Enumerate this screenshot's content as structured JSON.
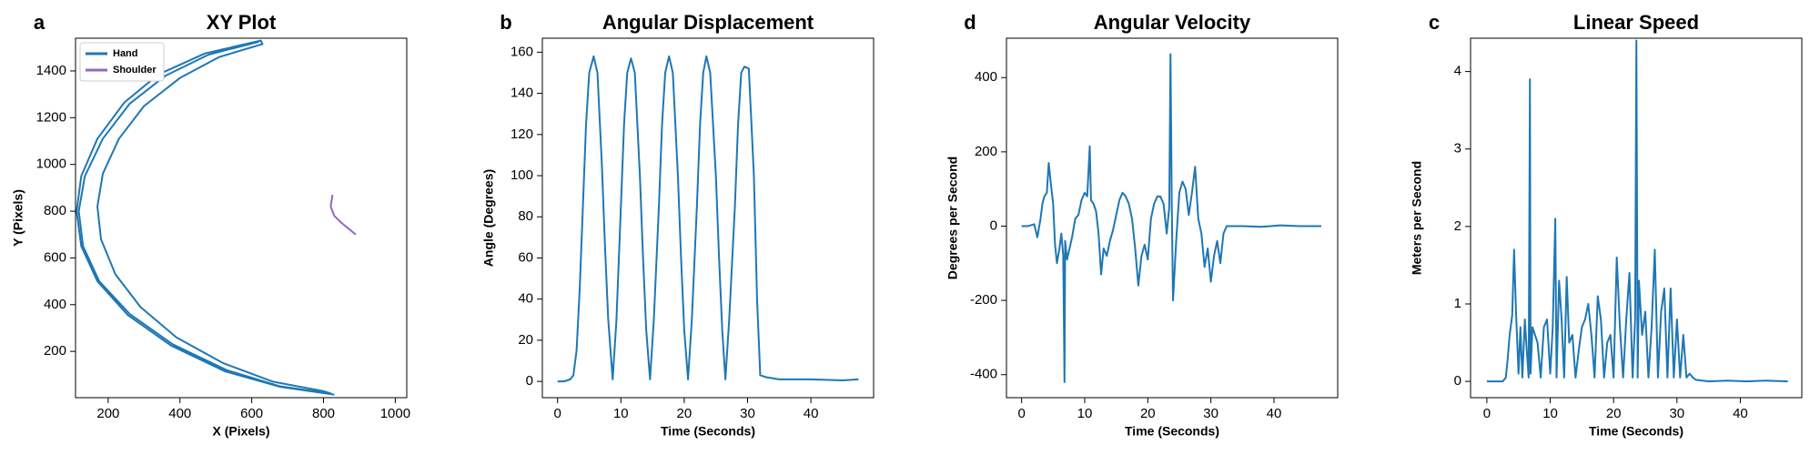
{
  "chart_data": [
    {
      "type": "line",
      "label": "a",
      "title": "XY Plot",
      "x_label": "X (Pixels)",
      "y_label": "Y (Pixels)",
      "xlim": [
        109,
        1032
      ],
      "ylim": [
        2,
        1540
      ],
      "xticks": [
        200,
        400,
        600,
        800,
        1000
      ],
      "yticks": [
        200,
        400,
        600,
        800,
        1000,
        1200,
        1400
      ],
      "legend": "upper left",
      "series": [
        {
          "name": "Hand",
          "color": "#1f77b4",
          "x": [
            620,
            480,
            360,
            260,
            185,
            135,
            118,
            130,
            175,
            260,
            380,
            530,
            680,
            820,
            800,
            660,
            520,
            390,
            290,
            220,
            180,
            170,
            185,
            230,
            300,
            400,
            510,
            630,
            625,
            470,
            340,
            245,
            170,
            125,
            112,
            125,
            170,
            255,
            375,
            525,
            680,
            830
          ],
          "values": [
            1525,
            1470,
            1380,
            1260,
            1110,
            950,
            800,
            650,
            500,
            360,
            230,
            120,
            50,
            20,
            30,
            70,
            150,
            260,
            390,
            530,
            680,
            820,
            960,
            1110,
            1250,
            1370,
            1460,
            1515,
            1530,
            1475,
            1385,
            1265,
            1110,
            950,
            800,
            650,
            500,
            355,
            225,
            115,
            48,
            15
          ]
        },
        {
          "name": "Shoulder",
          "color": "#9467bd",
          "x": [
            825,
            820,
            830,
            850,
            870,
            890
          ],
          "values": [
            870,
            820,
            780,
            750,
            725,
            700
          ]
        }
      ]
    },
    {
      "type": "line",
      "label": "b",
      "title": "Angular Displacement",
      "x_label": "Time (Seconds)",
      "y_label": "Angle (Degrees)",
      "xlim": [
        -2.4,
        49.9
      ],
      "ylim": [
        -7.9,
        166.8
      ],
      "xticks": [
        0,
        10,
        20,
        30,
        40
      ],
      "yticks": [
        0,
        20,
        40,
        60,
        80,
        100,
        120,
        140,
        160
      ],
      "series": [
        {
          "color": "#1f77b4",
          "x": [
            0,
            1,
            2,
            2.5,
            3,
            3.5,
            4,
            4.5,
            5,
            5.7,
            6.3,
            7,
            7.5,
            8,
            8.7,
            9.3,
            10,
            10.5,
            11,
            11.6,
            12.2,
            13,
            13.5,
            14,
            14.6,
            15.2,
            16,
            16.5,
            17,
            17.6,
            18.2,
            19,
            19.5,
            20,
            20.6,
            21.2,
            22,
            22.5,
            23,
            23.5,
            24.1,
            25,
            25.5,
            26,
            26.5,
            27.1,
            28,
            28.5,
            29,
            29.5,
            30.2,
            31,
            31.5,
            32,
            33,
            35,
            40,
            45,
            47.5
          ],
          "values": [
            0,
            0,
            1,
            3,
            15,
            45,
            85,
            125,
            150,
            158,
            150,
            105,
            65,
            30,
            1,
            30,
            85,
            125,
            150,
            157,
            150,
            100,
            60,
            25,
            1,
            30,
            85,
            125,
            150,
            158,
            150,
            100,
            60,
            25,
            1,
            30,
            85,
            125,
            150,
            158,
            150,
            100,
            60,
            25,
            1,
            30,
            85,
            125,
            150,
            153,
            152,
            100,
            40,
            3,
            2,
            1,
            1,
            0.5,
            1
          ]
        }
      ]
    },
    {
      "type": "line",
      "label": "d",
      "title": "Angular Velocity",
      "x_label": "Time (Seconds)",
      "y_label": "Degrees per Second",
      "xlim": [
        -2.4,
        50.1
      ],
      "ylim": [
        -462,
        506
      ],
      "xticks": [
        0,
        10,
        20,
        30,
        40
      ],
      "yticks": [
        -400,
        -200,
        0,
        200,
        400
      ],
      "series": [
        {
          "color": "#1f77b4",
          "x": [
            0,
            1,
            2,
            2.5,
            3,
            3.3,
            3.6,
            4,
            4.3,
            4.6,
            5,
            5.3,
            5.6,
            6,
            6.3,
            6.6,
            6.8,
            6.9,
            7.2,
            7.6,
            8,
            8.5,
            9,
            9.5,
            10,
            10.4,
            10.8,
            11,
            11.4,
            11.8,
            12.2,
            12.6,
            13,
            13.5,
            14,
            14.5,
            15,
            15.5,
            16,
            16.5,
            17,
            17.5,
            18,
            18.5,
            19,
            19.5,
            20,
            20.5,
            21,
            21.5,
            22,
            22.5,
            23,
            23.4,
            23.6,
            23.8,
            24,
            24.5,
            25,
            25.5,
            26,
            26.5,
            27,
            27.5,
            28,
            28.5,
            29,
            29.5,
            30,
            30.5,
            31,
            31.5,
            32,
            32.5,
            33,
            35,
            38,
            41,
            44,
            47.5
          ],
          "values": [
            0,
            0,
            5,
            -30,
            20,
            60,
            80,
            90,
            170,
            120,
            60,
            -50,
            -100,
            -60,
            -20,
            -80,
            -420,
            -40,
            -90,
            -60,
            -30,
            20,
            30,
            70,
            90,
            80,
            215,
            70,
            60,
            40,
            -20,
            -130,
            -60,
            -80,
            -40,
            -10,
            30,
            70,
            90,
            80,
            60,
            20,
            -60,
            -160,
            -80,
            -50,
            -90,
            20,
            60,
            80,
            80,
            60,
            -20,
            50,
            463,
            60,
            -200,
            -40,
            90,
            120,
            100,
            30,
            90,
            160,
            20,
            -20,
            -110,
            -60,
            -150,
            -80,
            -40,
            -100,
            -20,
            0,
            0,
            0,
            -2,
            2,
            0,
            0
          ]
        }
      ]
    },
    {
      "type": "line",
      "label": "c",
      "title": "Linear Speed",
      "x_label": "Time (Seconds)",
      "y_label": "Meters per Second",
      "xlim": [
        -2.57,
        49.7
      ],
      "ylim": [
        -0.21,
        4.43
      ],
      "xticks": [
        0,
        10,
        20,
        30,
        40
      ],
      "yticks": [
        0,
        1,
        2,
        3,
        4
      ],
      "series": [
        {
          "color": "#1f77b4",
          "x": [
            0,
            1,
            2,
            2.5,
            3,
            3.3,
            3.6,
            4,
            4.3,
            4.6,
            5,
            5.3,
            5.6,
            6,
            6.3,
            6.6,
            6.8,
            6.9,
            7.2,
            7.6,
            8,
            8.5,
            9,
            9.5,
            10,
            10.4,
            10.8,
            11,
            11.4,
            11.8,
            12.2,
            12.6,
            13,
            13.5,
            14,
            14.5,
            15,
            15.5,
            16,
            16.5,
            17,
            17.5,
            18,
            18.5,
            19,
            19.5,
            20,
            20.5,
            21,
            21.5,
            22,
            22.5,
            23,
            23.4,
            23.6,
            23.8,
            24,
            24.5,
            25,
            25.5,
            26,
            26.5,
            27,
            27.5,
            28,
            28.5,
            29,
            29.5,
            30,
            30.5,
            31,
            31.5,
            32,
            32.5,
            33,
            35,
            38,
            41,
            44,
            47.5
          ],
          "values": [
            0,
            0,
            0,
            0,
            0.05,
            0.3,
            0.6,
            0.85,
            1.7,
            0.9,
            0.1,
            0.7,
            0.05,
            0.8,
            0.4,
            0.05,
            3.9,
            0.1,
            0.7,
            0.6,
            0.5,
            0.05,
            0.7,
            0.8,
            0.1,
            0.7,
            2.1,
            0.05,
            1.3,
            0.8,
            0.05,
            1.35,
            0.5,
            0.6,
            0.05,
            0.4,
            0.7,
            0.8,
            1.0,
            0.6,
            0.05,
            1.1,
            0.8,
            0.05,
            0.5,
            0.6,
            0.05,
            1.6,
            0.7,
            0.05,
            0.8,
            1.4,
            0.05,
            0.8,
            4.4,
            0.05,
            1.3,
            0.6,
            0.9,
            0.05,
            0.7,
            1.7,
            0.05,
            0.9,
            1.2,
            0.05,
            1.2,
            0.05,
            0.8,
            0.05,
            0.6,
            0.05,
            0.1,
            0.05,
            0.02,
            0,
            0.01,
            0,
            0.01,
            0
          ]
        }
      ]
    }
  ]
}
